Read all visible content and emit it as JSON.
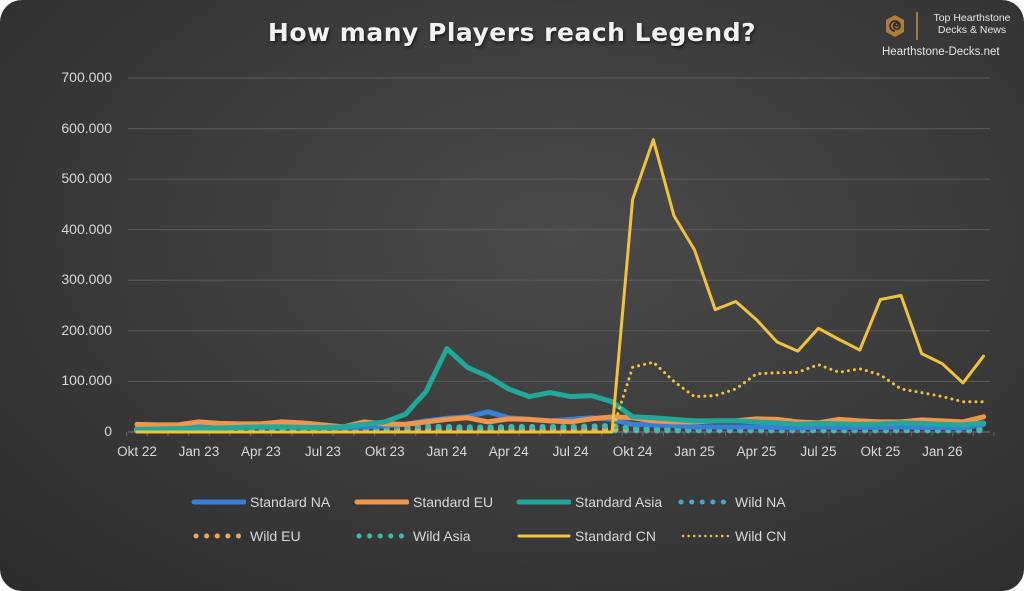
{
  "title": "How many Players reach Legend?",
  "brand": {
    "tagline_line1": "Top Hearthstone",
    "tagline_line2": "Decks & News",
    "site": "Hearthstone-Decks.net",
    "logo_icon": "hearthstone-swirl-icon",
    "accent": "#b07d3a"
  },
  "chart_data": {
    "type": "line",
    "title": "How many Players reach Legend?",
    "xlabel": "",
    "ylabel": "",
    "ylim": [
      0,
      700000
    ],
    "y_ticks": [
      "0",
      "100.000",
      "200.000",
      "300.000",
      "400.000",
      "500.000",
      "600.000",
      "700.000"
    ],
    "y_tick_values": [
      0,
      100000,
      200000,
      300000,
      400000,
      500000,
      600000,
      700000
    ],
    "x_tick_labels": [
      "Okt 22",
      "Jan 23",
      "Apr 23",
      "Jul 23",
      "Okt 23",
      "Jan 24",
      "Apr 24",
      "Jul 24",
      "Okt 24",
      "Jan 25",
      "Apr 25",
      "Jul 25",
      "Okt 25",
      "Jan 26"
    ],
    "x_tick_indices": [
      0,
      3,
      6,
      9,
      12,
      15,
      18,
      21,
      24,
      27,
      30,
      33,
      36,
      39
    ],
    "categories": [
      "Okt 22",
      "Nov 22",
      "Dez 22",
      "Jan 23",
      "Feb 23",
      "Mär 23",
      "Apr 23",
      "Mai 23",
      "Jun 23",
      "Jul 23",
      "Aug 23",
      "Sep 23",
      "Okt 23",
      "Nov 23",
      "Dez 23",
      "Jan 24",
      "Feb 24",
      "Mär 24",
      "Apr 24",
      "Mai 24",
      "Jun 24",
      "Jul 24",
      "Aug 24",
      "Sep 24",
      "Okt 24",
      "Nov 24",
      "Dez 24",
      "Jan 25",
      "Feb 25",
      "Mär 25",
      "Apr 25",
      "Mai 25",
      "Jun 25",
      "Jul 25",
      "Aug 25",
      "Sep 25",
      "Okt 25",
      "Nov 25",
      "Dez 25",
      "Jan 26",
      "Feb 26",
      "Mär 26"
    ],
    "grid": true,
    "legend_position": "bottom",
    "series": [
      {
        "name": "Standard NA",
        "color": "#3a7fd6",
        "style": "solid",
        "width": 5,
        "values": [
          8000,
          8000,
          9000,
          10000,
          9000,
          9000,
          10000,
          10000,
          10000,
          9000,
          9000,
          10000,
          12000,
          15000,
          22000,
          27000,
          30000,
          40000,
          28000,
          25000,
          22000,
          25000,
          28000,
          25000,
          15000,
          14000,
          13000,
          10000,
          10000,
          10000,
          10000,
          9000,
          8000,
          10000,
          9000,
          9000,
          9000,
          10000,
          9000,
          9000,
          8000,
          15000
        ]
      },
      {
        "name": "Standard EU",
        "color": "#f0954a",
        "style": "solid",
        "width": 5,
        "values": [
          15000,
          14000,
          14000,
          20000,
          17000,
          16000,
          16000,
          20000,
          18000,
          14000,
          10000,
          20000,
          16000,
          15000,
          20000,
          25000,
          28000,
          20000,
          26000,
          25000,
          22000,
          20000,
          26000,
          30000,
          28000,
          22000,
          20000,
          20000,
          22000,
          22000,
          26000,
          25000,
          20000,
          18000,
          25000,
          22000,
          20000,
          20000,
          24000,
          22000,
          20000,
          30000
        ]
      },
      {
        "name": "Standard Asia",
        "color": "#22a89a",
        "style": "solid",
        "width": 5,
        "values": [
          5000,
          6000,
          7000,
          8000,
          8000,
          9000,
          10000,
          10000,
          9000,
          9000,
          10000,
          15000,
          20000,
          35000,
          80000,
          165000,
          128000,
          110000,
          85000,
          70000,
          78000,
          70000,
          72000,
          60000,
          30000,
          28000,
          25000,
          22000,
          22000,
          22000,
          20000,
          18000,
          15000,
          17000,
          16000,
          15000,
          16000,
          18000,
          17000,
          15000,
          14000,
          18000
        ]
      },
      {
        "name": "Wild NA",
        "color": "#4aa8c8",
        "style": "dotted-large",
        "width": 6,
        "values": [
          3000,
          3000,
          3000,
          3000,
          3000,
          3000,
          3000,
          3000,
          3000,
          3000,
          3000,
          3000,
          3000,
          3000,
          3000,
          3000,
          3000,
          3000,
          3000,
          3000,
          3000,
          3000,
          3000,
          3000,
          3000,
          3000,
          3000,
          3000,
          3000,
          3000,
          3000,
          3000,
          3000,
          3000,
          3000,
          3000,
          3000,
          3000,
          3000,
          3000,
          3000,
          3000
        ]
      },
      {
        "name": "Wild EU",
        "color": "#f0a85a",
        "style": "dotted-large",
        "width": 6,
        "values": [
          5000,
          5000,
          5000,
          6000,
          6000,
          6000,
          6000,
          6000,
          6000,
          6000,
          6000,
          6000,
          6000,
          6000,
          6000,
          6000,
          6000,
          6000,
          6000,
          6000,
          6000,
          6000,
          6000,
          6000,
          6000,
          6000,
          6000,
          6000,
          6000,
          6000,
          6000,
          6000,
          6000,
          6000,
          6000,
          6000,
          6000,
          6000,
          6000,
          6000,
          6000,
          6000
        ]
      },
      {
        "name": "Wild Asia",
        "color": "#3cbcb0",
        "style": "dotted-large",
        "width": 6,
        "values": [
          5000,
          5000,
          6000,
          6000,
          6000,
          6000,
          6000,
          6000,
          6000,
          6000,
          7000,
          8000,
          9000,
          10000,
          11000,
          10000,
          9000,
          9000,
          10000,
          10000,
          10000,
          10000,
          11000,
          12000,
          7000,
          6000,
          6000,
          6000,
          6000,
          6000,
          6000,
          6000,
          6000,
          6000,
          6000,
          6000,
          6000,
          6000,
          6000,
          6000,
          6000,
          6000
        ]
      },
      {
        "name": "Standard CN",
        "color": "#f0c23e",
        "style": "solid",
        "width": 3,
        "values": [
          0,
          0,
          0,
          0,
          0,
          0,
          0,
          0,
          0,
          0,
          0,
          0,
          0,
          0,
          0,
          0,
          0,
          0,
          0,
          0,
          0,
          0,
          0,
          0,
          460000,
          578000,
          428000,
          360000,
          242000,
          258000,
          222000,
          178000,
          160000,
          205000,
          183000,
          162000,
          262000,
          270000,
          155000,
          135000,
          97000,
          150000
        ]
      },
      {
        "name": "Wild CN",
        "color": "#f0c23e",
        "style": "dotted-small",
        "width": 3,
        "values": [
          0,
          0,
          0,
          0,
          0,
          0,
          0,
          0,
          0,
          0,
          0,
          0,
          0,
          0,
          0,
          0,
          0,
          0,
          0,
          0,
          0,
          0,
          0,
          0,
          128000,
          138000,
          100000,
          70000,
          72000,
          85000,
          115000,
          117000,
          118000,
          133000,
          118000,
          125000,
          113000,
          85000,
          78000,
          70000,
          60000,
          60000
        ]
      }
    ]
  },
  "legend": [
    {
      "label": "Standard NA"
    },
    {
      "label": "Standard EU"
    },
    {
      "label": "Standard Asia"
    },
    {
      "label": "Wild NA"
    },
    {
      "label": "Wild EU"
    },
    {
      "label": "Wild Asia"
    },
    {
      "label": "Standard CN"
    },
    {
      "label": "Wild CN"
    }
  ]
}
